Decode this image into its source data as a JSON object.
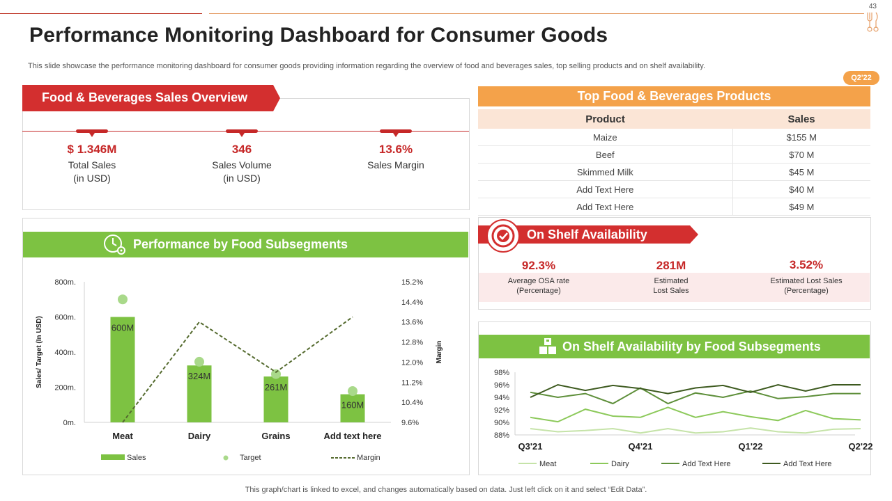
{
  "page": {
    "number": "43",
    "title": "Performance Monitoring Dashboard for Consumer Goods",
    "subtitle": "This slide showcase the performance monitoring dashboard for consumer goods providing information regarding the overview of food and beverages  sales, top selling products and on shelf availability.",
    "badge": "Q2'22",
    "footer": "This graph/chart is linked to excel, and changes automatically based on data. Just left click on it and select “Edit Data”.",
    "colors": {
      "red": "#d32f2f",
      "green": "#7dc242",
      "orange": "#f4a24a",
      "peach": "#fbe5d6"
    }
  },
  "sales_overview": {
    "title": "Food & Beverages Sales Overview",
    "kpis": [
      {
        "value": "$ 1.346M",
        "label1": "Total Sales",
        "label2": "(in USD)"
      },
      {
        "value": "346",
        "label1": "Sales Volume",
        "label2": "(in USD)"
      },
      {
        "value": "13.6%",
        "label1": "Sales Margin",
        "label2": ""
      }
    ]
  },
  "top_products": {
    "title": "Top Food & Beverages Products",
    "headers": [
      "Product",
      "Sales"
    ],
    "rows": [
      [
        "Maize",
        "$155 M"
      ],
      [
        "Beef",
        "$70 M"
      ],
      [
        "Skimmed Milk",
        "$45 M"
      ],
      [
        "Add Text Here",
        "$40 M"
      ],
      [
        "Add Text Here",
        "$49 M"
      ]
    ]
  },
  "shelf_availability": {
    "title": "On Shelf Availability",
    "icon": "target-check-icon",
    "kpis": [
      {
        "value": "92.3%",
        "label1": "Average OSA rate",
        "label2": "(Percentage)"
      },
      {
        "value": "281M",
        "label1": "Estimated",
        "label2": "Lost Sales"
      },
      {
        "value": "3.52%",
        "label1": "Estimated Lost Sales",
        "label2": "(Percentage)"
      }
    ]
  },
  "performance": {
    "title": "Performance by Food Subsegments",
    "icon": "clock-gear-icon"
  },
  "osa_subsegments": {
    "title": "On Shelf Availability by Food Subsegments",
    "icon": "boxes-icon"
  },
  "chart_data": [
    {
      "type": "bar",
      "categories": [
        "Meat",
        "Dairy",
        "Grains",
        "Add text here"
      ],
      "series": [
        {
          "name": "Sales",
          "type": "bar",
          "values": [
            600,
            324,
            261,
            160
          ],
          "labels": [
            "600M",
            "324M",
            "261M",
            "160M"
          ],
          "color": "#7dc242"
        },
        {
          "name": "Target",
          "type": "scatter",
          "values": [
            700,
            345,
            275,
            178
          ],
          "color": "#a9d98a"
        },
        {
          "name": "Margin",
          "type": "line",
          "axis": "right",
          "values": [
            9.6,
            13.6,
            11.6,
            13.8
          ],
          "color": "#556b2f"
        }
      ],
      "ylabel": "Sales/ Target (In USD)",
      "ylabel2": "Margin",
      "ylim": [
        0,
        800
      ],
      "ylim2": [
        9.6,
        15.2
      ],
      "yticks": [
        "0m.",
        "200m.",
        "400m.",
        "600m.",
        "800m."
      ],
      "yticks2": [
        "9.6%",
        "10.4%",
        "11.2%",
        "12.0%",
        "12.8%",
        "13.6%",
        "14.4%",
        "15.2%"
      ],
      "legend": "bottom"
    },
    {
      "type": "line",
      "x_ticks": [
        "Q3'21",
        "Q4'21",
        "Q1'22",
        "Q2'22"
      ],
      "n_points": 13,
      "ylim": [
        88,
        98
      ],
      "yticks": [
        "88%",
        "90%",
        "92%",
        "94%",
        "96%",
        "98%"
      ],
      "series": [
        {
          "name": "Meat",
          "color": "#c5e3a8",
          "values": [
            89.0,
            88.5,
            88.7,
            89.0,
            88.3,
            89.0,
            88.3,
            88.5,
            89.1,
            88.5,
            88.3,
            88.9,
            89.0
          ]
        },
        {
          "name": "Dairy",
          "color": "#8cc95a",
          "values": [
            90.8,
            90.1,
            92.1,
            91.0,
            90.8,
            92.4,
            90.8,
            91.7,
            90.9,
            90.3,
            91.9,
            90.6,
            90.4
          ]
        },
        {
          "name": "Add Text Here",
          "color": "#5e8f3a",
          "values": [
            94.8,
            94.0,
            94.6,
            93.0,
            95.5,
            93.0,
            94.7,
            94.0,
            95.0,
            93.8,
            94.1,
            94.6,
            94.6
          ]
        },
        {
          "name": "Add Text Here",
          "color": "#3d5a1f",
          "values": [
            94.0,
            96.0,
            95.1,
            95.9,
            95.4,
            94.6,
            95.5,
            95.9,
            94.8,
            96.0,
            95.0,
            96.0,
            96.0
          ]
        }
      ],
      "legend": "bottom"
    }
  ]
}
